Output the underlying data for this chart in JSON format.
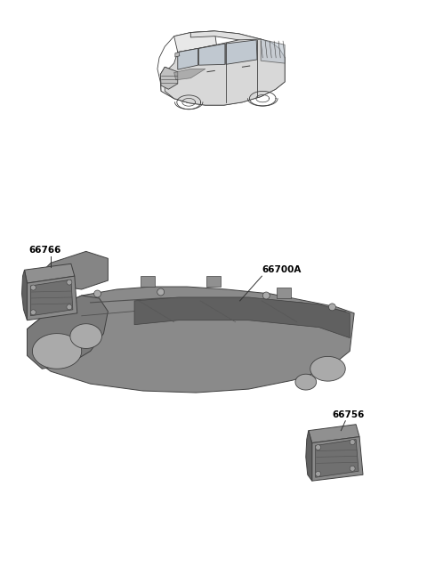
{
  "background_color": "#ffffff",
  "part_fill": "#909090",
  "part_fill_light": "#b8b8b8",
  "part_fill_dark": "#606060",
  "part_edge": "#404040",
  "line_color": "#333333",
  "label_color": "#000000",
  "label_fontsize": 7.5,
  "figsize": [
    4.8,
    6.56
  ],
  "dpi": 100,
  "labels": {
    "66766": [
      0.08,
      0.935
    ],
    "66700A": [
      0.46,
      0.755
    ],
    "66756": [
      0.74,
      0.615
    ]
  }
}
